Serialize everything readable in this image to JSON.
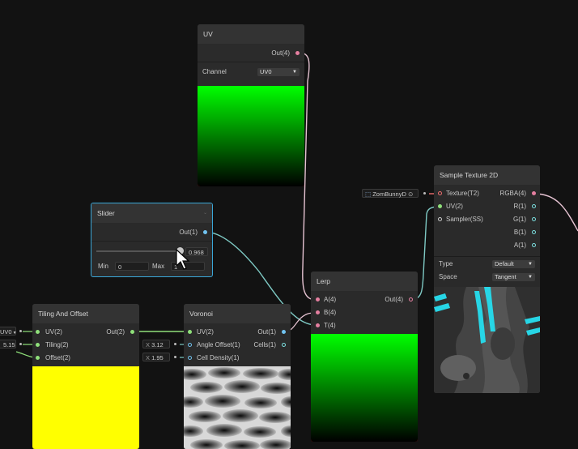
{
  "nodes": {
    "uv": {
      "title": "UV",
      "out_label": "Out(4)",
      "channel_label": "Channel",
      "channel_value": "UV0"
    },
    "slider": {
      "title": "Slider",
      "out_label": "Out(1)",
      "value": "0.968",
      "value_fraction": 0.968,
      "min_label": "Min",
      "min_value": "0",
      "max_label": "Max",
      "max_value": "1"
    },
    "lerp": {
      "title": "Lerp",
      "inputs": [
        "A(4)",
        "B(4)",
        "T(4)"
      ],
      "out_label": "Out(4)"
    },
    "tiling": {
      "title": "Tiling And Offset",
      "inputs": [
        "UV(2)",
        "Tiling(2)",
        "Offset(2)"
      ],
      "out_label": "Out(2)",
      "uv_inline": "UV0",
      "tiling_inline": "5.15"
    },
    "voronoi": {
      "title": "Voronoi",
      "inputs": [
        "UV(2)",
        "Angle Offset(1)",
        "Cell Density(1)"
      ],
      "outputs": [
        "Out(1)",
        "Cells(1)"
      ],
      "angle_axis": "X",
      "angle_value": "3.12",
      "density_axis": "X",
      "density_value": "1.95"
    },
    "sample": {
      "title": "Sample Texture 2D",
      "inputs": [
        "Texture(T2)",
        "UV(2)",
        "Sampler(SS)"
      ],
      "outputs": [
        "RGBA(4)",
        "R(1)",
        "G(1)",
        "B(1)",
        "A(1)"
      ],
      "texture_inline": "ZomBunnyD",
      "type_label": "Type",
      "type_value": "Default",
      "space_label": "Space",
      "space_value": "Tangent"
    }
  },
  "colors": {
    "background": "#121212",
    "node_body": "#2a2a2a",
    "node_header": "#333333",
    "selection": "#3aa7d8",
    "vector4_port": "#e57fa0",
    "vector2_port": "#8fe07a",
    "vector1_port": "#71c3f0",
    "texture_port": "#ef6e6e",
    "wire_teal": "#7ec9c4"
  }
}
